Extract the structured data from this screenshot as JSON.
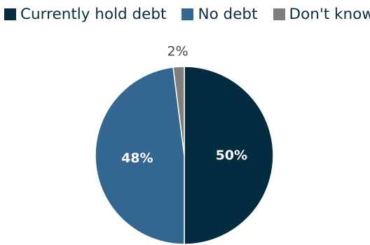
{
  "chart_data": {
    "type": "pie",
    "title": "",
    "legend_placement": "top-left",
    "slices": [
      {
        "name": "Currently hold debt",
        "value": 50,
        "label": "50%",
        "color": "#042c41",
        "label_color": "#ffffff",
        "label_position": "inside"
      },
      {
        "name": "No debt",
        "value": 48,
        "label": "48%",
        "color": "#336690",
        "label_color": "#ffffff",
        "label_position": "inside"
      },
      {
        "name": "Don't know",
        "value": 2,
        "label": "2%",
        "color": "#7e7e7e",
        "label_color": "#444444",
        "label_position": "outside"
      }
    ]
  }
}
